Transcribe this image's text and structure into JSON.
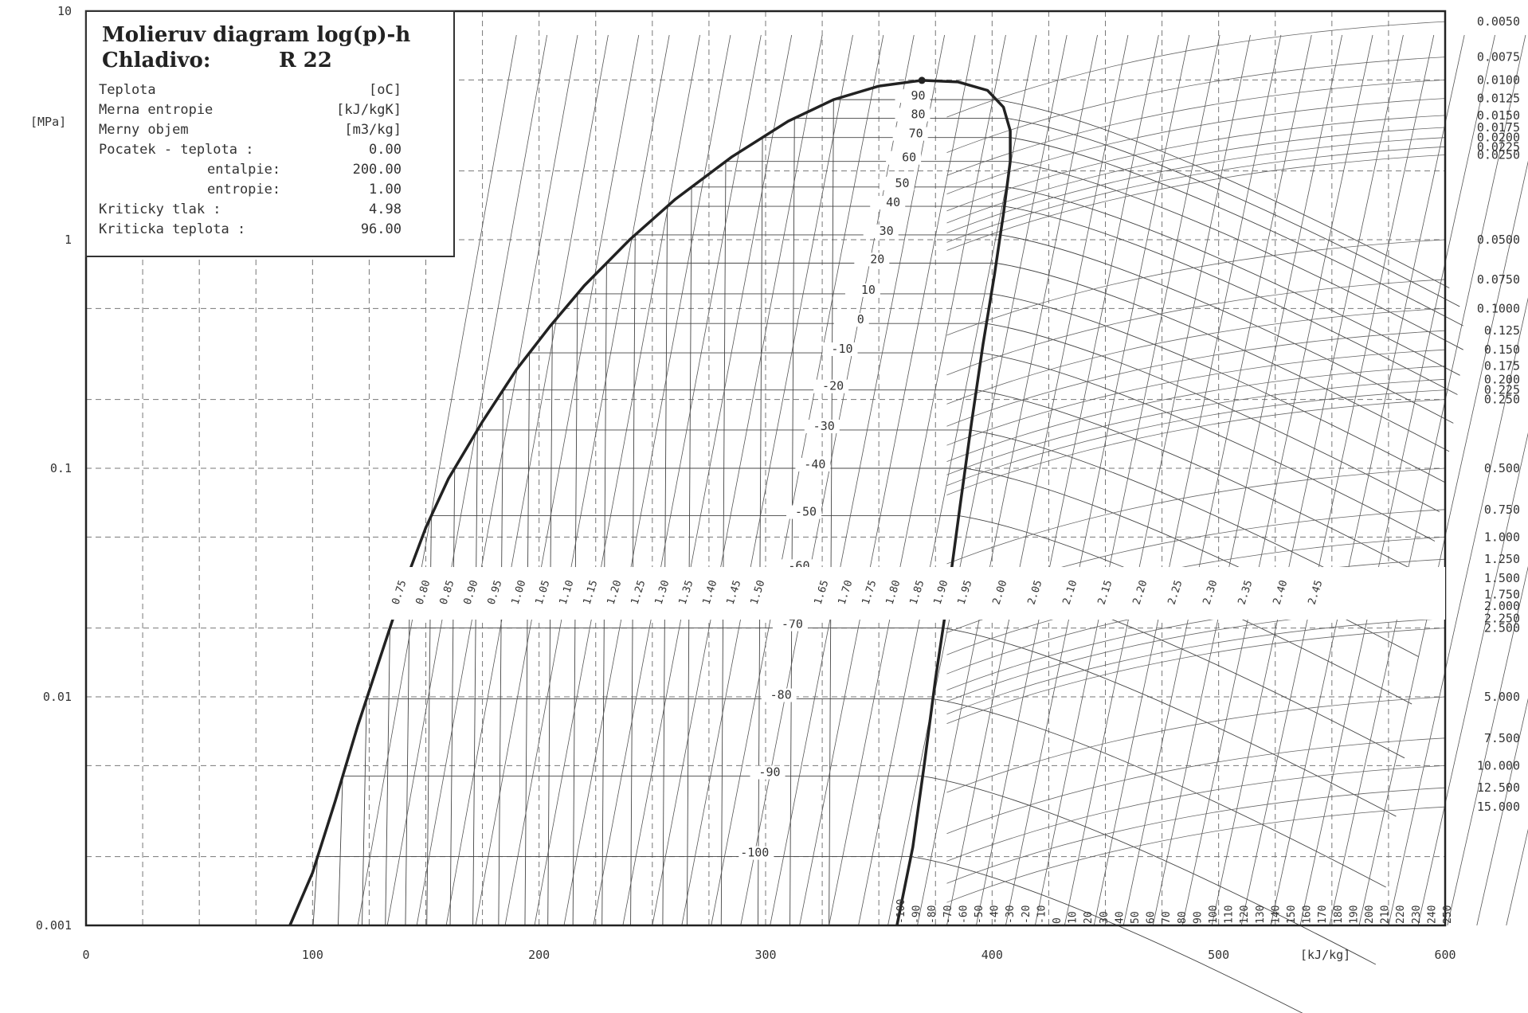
{
  "chart_data": {
    "type": "line",
    "title": "Molieruv diagram log(p)-h",
    "subtitle": "Chladivo:",
    "refrigerant": "R 22",
    "xlabel": "[kJ/kg]",
    "ylabel": "[MPa]",
    "xlim": [
      0,
      600
    ],
    "ylim": [
      0.001,
      10
    ],
    "yscale": "log",
    "grid": true,
    "x_ticks": [
      "0",
      "100",
      "200",
      "300",
      "400",
      "500",
      "600"
    ],
    "y_ticks": [
      {
        "label": "10",
        "value": 10
      },
      {
        "label": "1",
        "value": 1
      },
      {
        "label": "0.1",
        "value": 0.1
      },
      {
        "label": "0.01",
        "value": 0.01
      },
      {
        "label": "0.001",
        "value": 0.001
      }
    ],
    "info_box": {
      "rows": [
        {
          "label": "Teplota",
          "value": "[oC]"
        },
        {
          "label": "Merna entropie",
          "value": "[kJ/kgK]"
        },
        {
          "label": "Merny objem",
          "value": "[m3/kg]"
        },
        {
          "label": "Pocatek - teplota :",
          "value": "0.00"
        },
        {
          "label": "entalpie:",
          "value": "200.00"
        },
        {
          "label": "entropie:",
          "value": "1.00"
        },
        {
          "label": "Kriticky  tlak    :",
          "value": "4.98"
        },
        {
          "label": "Kriticka  teplota :",
          "value": "96.00"
        }
      ]
    },
    "critical_point": {
      "h": 369,
      "p": 4.98
    },
    "saturation_liquid": [
      {
        "h": 90,
        "p": 0.001
      },
      {
        "h": 100,
        "p": 0.0017
      },
      {
        "h": 110,
        "p": 0.0035
      },
      {
        "h": 120,
        "p": 0.0075
      },
      {
        "h": 130,
        "p": 0.015
      },
      {
        "h": 140,
        "p": 0.03
      },
      {
        "h": 150,
        "p": 0.055
      },
      {
        "h": 160,
        "p": 0.09
      },
      {
        "h": 175,
        "p": 0.16
      },
      {
        "h": 190,
        "p": 0.27
      },
      {
        "h": 205,
        "p": 0.42
      },
      {
        "h": 220,
        "p": 0.63
      },
      {
        "h": 240,
        "p": 1.0
      },
      {
        "h": 260,
        "p": 1.5
      },
      {
        "h": 285,
        "p": 2.3
      },
      {
        "h": 310,
        "p": 3.3
      },
      {
        "h": 330,
        "p": 4.1
      },
      {
        "h": 350,
        "p": 4.7
      },
      {
        "h": 369,
        "p": 4.98
      }
    ],
    "saturation_vapor": [
      {
        "h": 369,
        "p": 4.98
      },
      {
        "h": 385,
        "p": 4.9
      },
      {
        "h": 398,
        "p": 4.5
      },
      {
        "h": 405,
        "p": 3.8
      },
      {
        "h": 408,
        "p": 3.0
      },
      {
        "h": 408,
        "p": 2.2
      },
      {
        "h": 405,
        "p": 1.3
      },
      {
        "h": 401,
        "p": 0.7
      },
      {
        "h": 396,
        "p": 0.35
      },
      {
        "h": 391,
        "p": 0.16
      },
      {
        "h": 386,
        "p": 0.07
      },
      {
        "h": 381,
        "p": 0.03
      },
      {
        "h": 375,
        "p": 0.012
      },
      {
        "h": 370,
        "p": 0.005
      },
      {
        "h": 365,
        "p": 0.0022
      },
      {
        "h": 358,
        "p": 0.001
      }
    ],
    "isotherm_labels": [
      {
        "label": "90",
        "h": 367,
        "p": 4.1
      },
      {
        "label": "80",
        "h": 367,
        "p": 3.4
      },
      {
        "label": "70",
        "h": 366,
        "p": 2.8
      },
      {
        "label": "60",
        "h": 363,
        "p": 2.2
      },
      {
        "label": "50",
        "h": 360,
        "p": 1.7
      },
      {
        "label": "40",
        "h": 356,
        "p": 1.4
      },
      {
        "label": "30",
        "h": 353,
        "p": 1.05
      },
      {
        "label": "20",
        "h": 349,
        "p": 0.79
      },
      {
        "label": "10",
        "h": 345,
        "p": 0.58
      },
      {
        "label": "0",
        "h": 340,
        "p": 0.43
      },
      {
        "label": "-10",
        "h": 335,
        "p": 0.32
      },
      {
        "label": "-20",
        "h": 331,
        "p": 0.22
      },
      {
        "label": "-30",
        "h": 327,
        "p": 0.147
      },
      {
        "label": "-40",
        "h": 323,
        "p": 0.1
      },
      {
        "label": "-50",
        "h": 319,
        "p": 0.062
      },
      {
        "label": "-60",
        "h": 316,
        "p": 0.036
      },
      {
        "label": "-70",
        "h": 313,
        "p": 0.02
      },
      {
        "label": "-80",
        "h": 308,
        "p": 0.0098
      },
      {
        "label": "-90",
        "h": 303,
        "p": 0.0045
      },
      {
        "label": "-100",
        "h": 298,
        "p": 0.002
      }
    ],
    "isentrope_labels": [
      "0.75",
      "0.80",
      "0.85",
      "0.90",
      "0.95",
      "1.00",
      "1.05",
      "1.10",
      "1.15",
      "1.20",
      "1.25",
      "1.30",
      "1.35",
      "1.40",
      "1.45",
      "1.50",
      "1.65",
      "1.70",
      "1.75",
      "1.80",
      "1.85",
      "1.90",
      "1.95",
      "2.00",
      "2.05",
      "2.10",
      "2.15",
      "2.20",
      "2.25",
      "2.30",
      "2.35",
      "2.40",
      "2.45"
    ],
    "bottom_temp_labels": [
      "-100",
      "-90",
      "-80",
      "-70",
      "-60",
      "-50",
      "-40",
      "-30",
      "-20",
      "-10",
      "0",
      "10",
      "20",
      "30",
      "40",
      "50",
      "60",
      "70",
      "80",
      "90",
      "100",
      "110",
      "120",
      "130",
      "140",
      "150",
      "160",
      "170",
      "180",
      "190",
      "200",
      "210",
      "220",
      "230",
      "240",
      "250"
    ],
    "volume_labels": [
      {
        "label": "0.0050",
        "p": 9.0
      },
      {
        "label": "0.0075",
        "p": 6.3
      },
      {
        "label": "0.0100",
        "p": 5.0
      },
      {
        "label": "0.0125",
        "p": 4.15
      },
      {
        "label": "0.0150",
        "p": 3.5
      },
      {
        "label": "0.0175",
        "p": 3.1
      },
      {
        "label": "0.0200",
        "p": 2.8
      },
      {
        "label": "0.0225",
        "p": 2.55
      },
      {
        "label": "0.0250",
        "p": 2.35
      },
      {
        "label": "0.0500",
        "p": 1.0
      },
      {
        "label": "0.0750",
        "p": 0.67
      },
      {
        "label": "0.1000",
        "p": 0.5
      },
      {
        "label": "0.125",
        "p": 0.4
      },
      {
        "label": "0.150",
        "p": 0.33
      },
      {
        "label": "0.175",
        "p": 0.28
      },
      {
        "label": "0.200",
        "p": 0.245
      },
      {
        "label": "0.225",
        "p": 0.22
      },
      {
        "label": "0.250",
        "p": 0.2
      },
      {
        "label": "0.500",
        "p": 0.1
      },
      {
        "label": "0.750",
        "p": 0.066
      },
      {
        "label": "1.000",
        "p": 0.05
      },
      {
        "label": "1.250",
        "p": 0.04
      },
      {
        "label": "1.500",
        "p": 0.033
      },
      {
        "label": "1.750",
        "p": 0.028
      },
      {
        "label": "2.000",
        "p": 0.025
      },
      {
        "label": "2.250",
        "p": 0.022
      },
      {
        "label": "2.500",
        "p": 0.02
      },
      {
        "label": "5.000",
        "p": 0.01
      },
      {
        "label": "7.500",
        "p": 0.0066
      },
      {
        "label": "10.000",
        "p": 0.005
      },
      {
        "label": "12.500",
        "p": 0.004
      },
      {
        "label": "15.000",
        "p": 0.0033
      }
    ]
  }
}
